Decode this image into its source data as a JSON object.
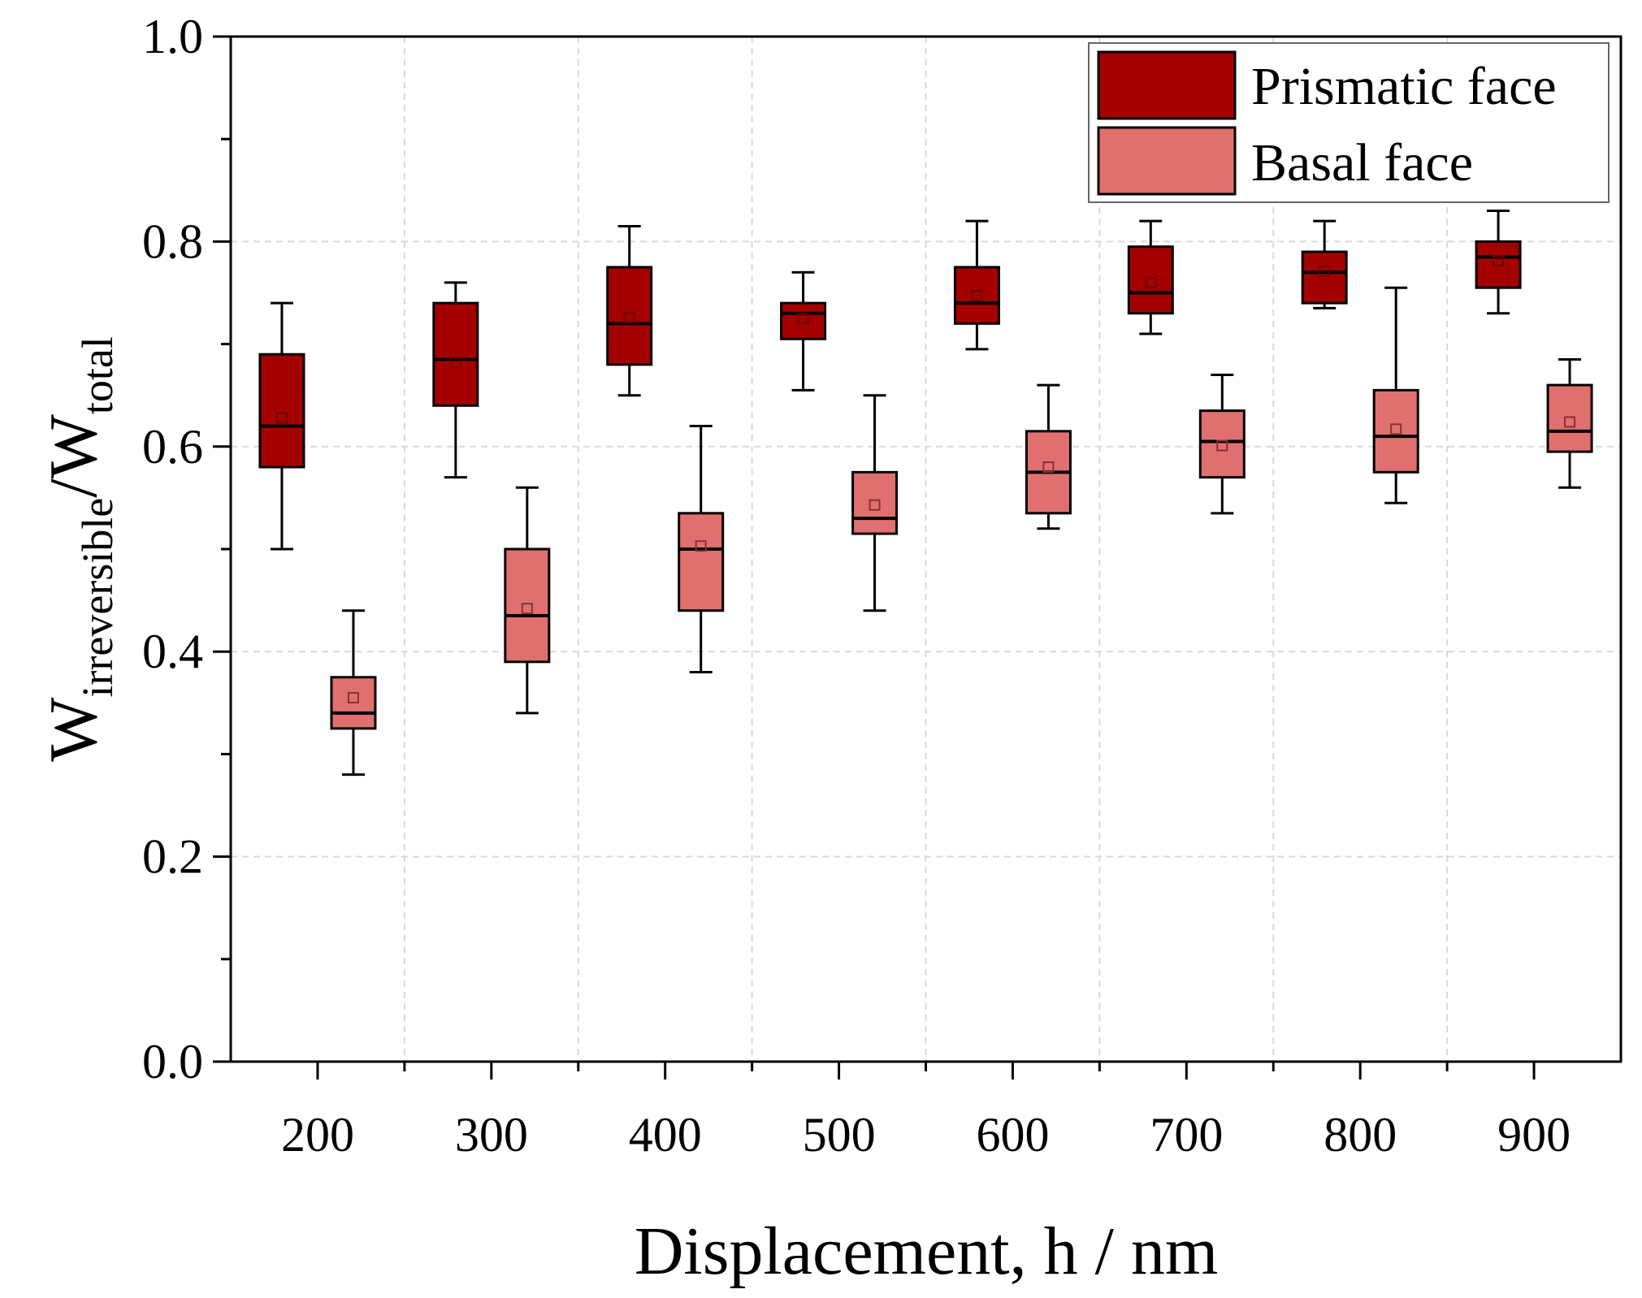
{
  "chart_data": {
    "type": "box",
    "title": "",
    "xlabel": "Displacement, h / nm",
    "ylabel": {
      "main": "W",
      "sub1": "irreversible",
      "sep": "/W",
      "sub2": "total"
    },
    "categories": [
      "200",
      "300",
      "400",
      "500",
      "600",
      "700",
      "800",
      "900"
    ],
    "ylim": [
      0.0,
      1.0
    ],
    "yticks": [
      "0.0",
      "0.2",
      "0.4",
      "0.6",
      "0.8",
      "1.0"
    ],
    "grid": true,
    "legend_position": "top-right",
    "series": [
      {
        "name": "Prismatic face",
        "color": "#a50000",
        "stats": [
          {
            "x": "200",
            "min": 0.5,
            "q1": 0.58,
            "median": 0.62,
            "q3": 0.69,
            "max": 0.74,
            "mean": 0.628
          },
          {
            "x": "300",
            "min": 0.57,
            "q1": 0.64,
            "median": 0.685,
            "q3": 0.74,
            "max": 0.76,
            "mean": 0.682
          },
          {
            "x": "400",
            "min": 0.65,
            "q1": 0.68,
            "median": 0.72,
            "q3": 0.775,
            "max": 0.815,
            "mean": 0.726
          },
          {
            "x": "500",
            "min": 0.655,
            "q1": 0.705,
            "median": 0.73,
            "q3": 0.74,
            "max": 0.77,
            "mean": 0.725
          },
          {
            "x": "600",
            "min": 0.695,
            "q1": 0.72,
            "median": 0.74,
            "q3": 0.775,
            "max": 0.82,
            "mean": 0.747
          },
          {
            "x": "700",
            "min": 0.71,
            "q1": 0.73,
            "median": 0.75,
            "q3": 0.795,
            "max": 0.82,
            "mean": 0.76
          },
          {
            "x": "800",
            "min": 0.735,
            "q1": 0.74,
            "median": 0.77,
            "q3": 0.79,
            "max": 0.82,
            "mean": 0.771
          },
          {
            "x": "900",
            "min": 0.73,
            "q1": 0.755,
            "median": 0.785,
            "q3": 0.8,
            "max": 0.83,
            "mean": 0.781
          }
        ]
      },
      {
        "name": "Basal face",
        "color": "#e07070",
        "stats": [
          {
            "x": "200",
            "min": 0.28,
            "q1": 0.325,
            "median": 0.34,
            "q3": 0.375,
            "max": 0.44,
            "mean": 0.355
          },
          {
            "x": "300",
            "min": 0.34,
            "q1": 0.39,
            "median": 0.435,
            "q3": 0.5,
            "max": 0.56,
            "mean": 0.442
          },
          {
            "x": "400",
            "min": 0.38,
            "q1": 0.44,
            "median": 0.5,
            "q3": 0.535,
            "max": 0.62,
            "mean": 0.503
          },
          {
            "x": "500",
            "min": 0.44,
            "q1": 0.515,
            "median": 0.53,
            "q3": 0.575,
            "max": 0.65,
            "mean": 0.543
          },
          {
            "x": "600",
            "min": 0.52,
            "q1": 0.535,
            "median": 0.575,
            "q3": 0.615,
            "max": 0.66,
            "mean": 0.58
          },
          {
            "x": "700",
            "min": 0.535,
            "q1": 0.57,
            "median": 0.605,
            "q3": 0.635,
            "max": 0.67,
            "mean": 0.601
          },
          {
            "x": "800",
            "min": 0.545,
            "q1": 0.575,
            "median": 0.61,
            "q3": 0.655,
            "max": 0.755,
            "mean": 0.617
          },
          {
            "x": "900",
            "min": 0.56,
            "q1": 0.595,
            "median": 0.615,
            "q3": 0.66,
            "max": 0.685,
            "mean": 0.624
          }
        ]
      }
    ]
  }
}
